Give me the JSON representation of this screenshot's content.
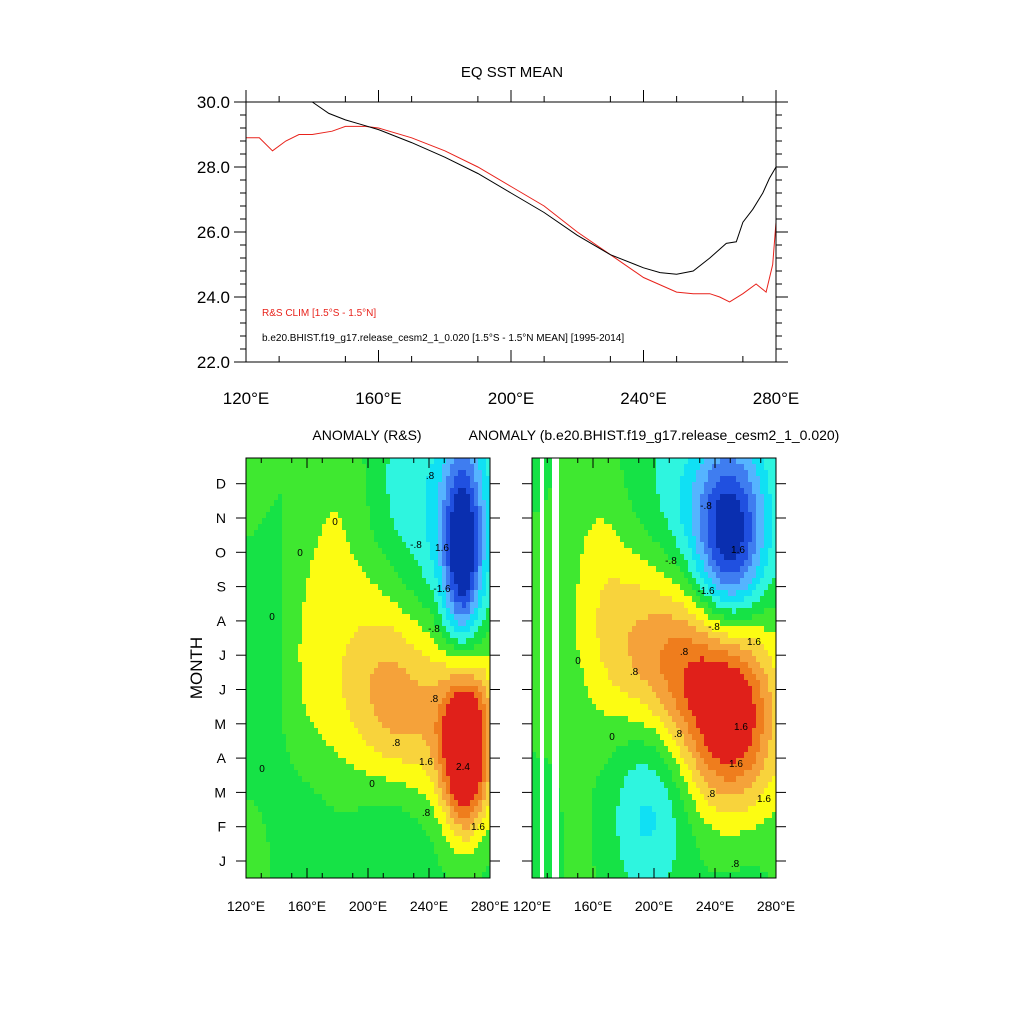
{
  "chart_data": [
    {
      "type": "line",
      "title": "EQ SST MEAN",
      "xlabel": "",
      "ylabel": "",
      "xlim": [
        120,
        280
      ],
      "ylim": [
        22,
        30
      ],
      "x_ticks": [
        120,
        160,
        200,
        240,
        280
      ],
      "x_tick_labels": [
        "120°E",
        "160°E",
        "200°E",
        "240°E",
        "280°E"
      ],
      "y_ticks": [
        22,
        24,
        26,
        28,
        30
      ],
      "y_tick_labels": [
        "22.0",
        "24.0",
        "26.0",
        "28.0",
        "30.0"
      ],
      "legend_placement": "bottom-left",
      "series": [
        {
          "name": "R&S CLIM [1.5°S - 1.5°N]",
          "color": "#e8221b",
          "x": [
            120,
            124,
            128,
            132,
            136,
            140,
            146,
            150,
            156,
            160,
            170,
            180,
            190,
            200,
            210,
            220,
            230,
            240,
            250,
            255,
            260,
            263,
            266,
            270,
            274,
            277,
            279,
            280
          ],
          "y": [
            28.9,
            28.9,
            28.5,
            28.8,
            29.0,
            29.0,
            29.1,
            29.25,
            29.25,
            29.2,
            28.9,
            28.5,
            28.0,
            27.4,
            26.8,
            26.0,
            25.3,
            24.6,
            24.15,
            24.1,
            24.1,
            24.0,
            23.85,
            24.1,
            24.4,
            24.15,
            25.0,
            26.3
          ]
        },
        {
          "name": "b.e20.BHIST.f19_g17.release_cesm2_1_0.020 [1.5°S - 1.5°N MEAN] [1995-2014]",
          "color": "#000000",
          "x": [
            140,
            145,
            150,
            155,
            160,
            170,
            180,
            190,
            200,
            210,
            220,
            230,
            240,
            245,
            250,
            255,
            260,
            265,
            268,
            270,
            273,
            276,
            278,
            280
          ],
          "y": [
            30.0,
            29.65,
            29.45,
            29.3,
            29.15,
            28.75,
            28.3,
            27.8,
            27.2,
            26.6,
            25.9,
            25.3,
            24.9,
            24.75,
            24.7,
            24.8,
            25.2,
            25.65,
            25.7,
            26.3,
            26.7,
            27.2,
            27.65,
            28.0
          ]
        }
      ]
    },
    {
      "type": "heatmap",
      "title": "ANOMALY (R&S)",
      "ylabel": "MONTH",
      "xlim": [
        120,
        280
      ],
      "x_ticks": [
        120,
        160,
        200,
        240,
        280
      ],
      "x_tick_labels": [
        "120°E",
        "160°E",
        "200°E",
        "240°E",
        "280°E"
      ],
      "months": [
        "J",
        "F",
        "M",
        "A",
        "M",
        "J",
        "J",
        "A",
        "S",
        "O",
        "N",
        "D"
      ],
      "contour_levels": [
        -2.4,
        -2.0,
        -1.6,
        -1.2,
        -0.8,
        -0.4,
        0,
        0.4,
        0.8,
        1.2,
        1.6,
        2.0,
        2.4
      ],
      "contour_labels": [
        ".8",
        "-.8",
        "1.6",
        "-1.6",
        "2.4",
        "0"
      ],
      "features": [
        {
          "kind": "warm",
          "x": 264,
          "month": 3.0,
          "peak": 2.6
        },
        {
          "kind": "cold",
          "x": 262,
          "month": 8.8,
          "peak": -2.1
        }
      ]
    },
    {
      "type": "heatmap",
      "title": "ANOMALY (b.e20.BHIST.f19_g17.release_cesm2_1_0.020)",
      "xlim": [
        120,
        280
      ],
      "x_ticks": [
        120,
        160,
        200,
        240,
        280
      ],
      "x_tick_labels": [
        "120°E",
        "160°E",
        "200°E",
        "240°E",
        "280°E"
      ],
      "months": [
        "J",
        "F",
        "M",
        "A",
        "M",
        "J",
        "J",
        "A",
        "S",
        "O",
        "N",
        "D"
      ],
      "contour_levels": [
        -2.4,
        -2.0,
        -1.6,
        -1.2,
        -0.8,
        -0.4,
        0,
        0.4,
        0.8,
        1.2,
        1.6,
        2.0,
        2.4
      ],
      "contour_labels": [
        ".8",
        "-.8",
        "1.6",
        "-1.6",
        "1.6",
        "0"
      ],
      "features": [
        {
          "kind": "warm",
          "x": 250,
          "month": 3.5,
          "peak": 2.1
        },
        {
          "kind": "cold",
          "x": 250,
          "month": 9.0,
          "peak": -2.1
        }
      ]
    }
  ],
  "colormap": [
    "#0a2fb0",
    "#2050e0",
    "#3f7df0",
    "#55b4ff",
    "#10e0f4",
    "#2ef5df",
    "#16e246",
    "#3fe830",
    "#fcfc12",
    "#f8d33c",
    "#f5a23a",
    "#ef7d1d",
    "#e0201a"
  ]
}
